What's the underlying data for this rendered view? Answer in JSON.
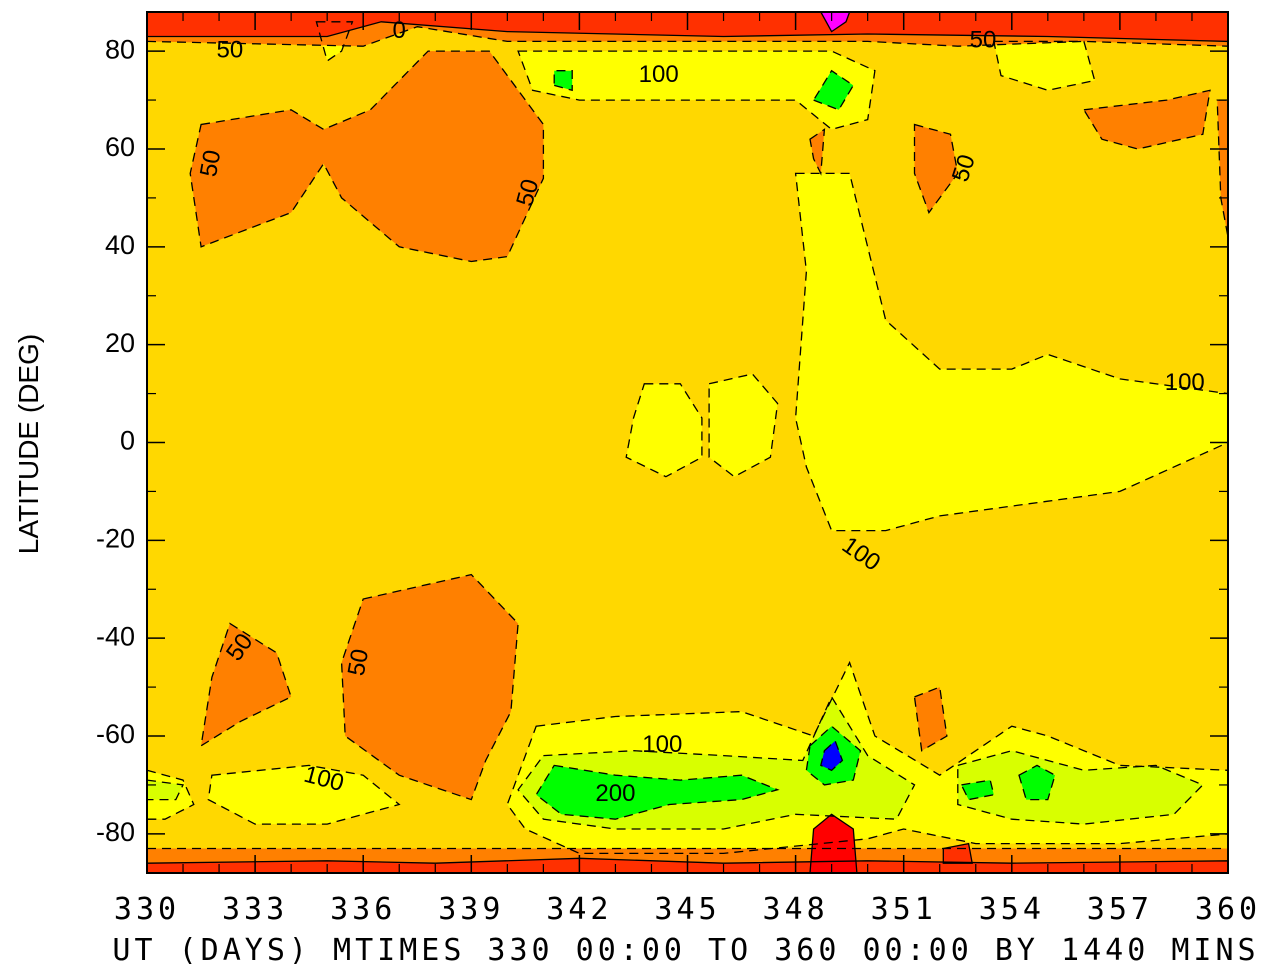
{
  "chart_data": {
    "type": "heatmap",
    "title": "",
    "xlabel": "UT (DAYS) MTIMES 330 00:00 TO 360 00:00 BY 1440 MINS",
    "ylabel": "LATITUDE (DEG)",
    "xlim": [
      330,
      360
    ],
    "ylim": [
      -88,
      88
    ],
    "xticks": [
      330,
      333,
      336,
      339,
      342,
      345,
      348,
      351,
      354,
      357,
      360
    ],
    "yticks": [
      80,
      60,
      40,
      20,
      0,
      -20,
      -40,
      -60,
      -80
    ],
    "contour_interval": 25,
    "contour_labels": [
      "0",
      "50",
      "100",
      "200"
    ],
    "colors": {
      "lt0": "#ff0000",
      "0_25": "#ff3000",
      "25_50": "#ff8000",
      "50_75": "#ffd800",
      "75_100": "#ffff00",
      "100_125": "#d8ff00",
      "125_200": "#80ff00",
      "200_300": "#00ff00",
      "high": "#0000ff",
      "max": "#ff00ff"
    },
    "regions": [
      {
        "level": "25_50",
        "points": [
          [
            331.5,
            65
          ],
          [
            334.0,
            68
          ],
          [
            334.9,
            64
          ],
          [
            336.2,
            68
          ],
          [
            337.8,
            80
          ],
          [
            339.5,
            80
          ],
          [
            341.0,
            65
          ],
          [
            341.0,
            54
          ],
          [
            340.0,
            38
          ],
          [
            339.0,
            37
          ],
          [
            337.0,
            40
          ],
          [
            335.4,
            50
          ],
          [
            334.9,
            57
          ],
          [
            334.0,
            47
          ],
          [
            331.5,
            40
          ],
          [
            331.2,
            55
          ]
        ]
      },
      {
        "level": "25_50",
        "points": [
          [
            351.3,
            65
          ],
          [
            352.3,
            63
          ],
          [
            352.5,
            55
          ],
          [
            351.7,
            47
          ],
          [
            351.3,
            55
          ]
        ]
      },
      {
        "level": "25_50",
        "points": [
          [
            356.0,
            68
          ],
          [
            358.3,
            70
          ],
          [
            359.5,
            72
          ],
          [
            359.3,
            63
          ],
          [
            357.5,
            60
          ],
          [
            356.5,
            62
          ]
        ]
      },
      {
        "level": "25_50",
        "points": [
          [
            348.4,
            62
          ],
          [
            348.8,
            64
          ],
          [
            348.7,
            55
          ],
          [
            348.5,
            58
          ]
        ]
      },
      {
        "level": "25_50",
        "points": [
          [
            359.7,
            70
          ],
          [
            360.0,
            70
          ],
          [
            360.0,
            42
          ],
          [
            359.8,
            50
          ]
        ]
      },
      {
        "level": "25_50",
        "points": [
          [
            332.3,
            -37
          ],
          [
            333.6,
            -43
          ],
          [
            334.0,
            -52
          ],
          [
            332.6,
            -57
          ],
          [
            331.5,
            -62
          ],
          [
            331.8,
            -48
          ]
        ]
      },
      {
        "level": "25_50",
        "points": [
          [
            336.0,
            -32
          ],
          [
            339.0,
            -27
          ],
          [
            340.3,
            -37
          ],
          [
            340.1,
            -55
          ],
          [
            339.4,
            -65
          ],
          [
            339.0,
            -73
          ],
          [
            337.0,
            -68
          ],
          [
            335.5,
            -60
          ],
          [
            335.4,
            -45
          ]
        ]
      },
      {
        "level": "25_50",
        "points": [
          [
            351.3,
            -52
          ],
          [
            352.0,
            -50
          ],
          [
            352.2,
            -60
          ],
          [
            351.5,
            -63
          ]
        ]
      },
      {
        "level": "75_100",
        "points": [
          [
            348.0,
            55
          ],
          [
            349.5,
            55
          ],
          [
            350.5,
            25
          ],
          [
            352.0,
            15
          ],
          [
            354.0,
            15
          ],
          [
            355.0,
            18
          ],
          [
            357.0,
            13
          ],
          [
            360.0,
            10
          ],
          [
            360.0,
            0
          ],
          [
            357.0,
            -10
          ],
          [
            355.0,
            -12
          ],
          [
            352.0,
            -15
          ],
          [
            350.5,
            -18
          ],
          [
            349.0,
            -18
          ],
          [
            348.3,
            -5
          ],
          [
            348.0,
            5
          ],
          [
            348.3,
            35
          ]
        ]
      },
      {
        "level": "75_100",
        "points": [
          [
            343.8,
            12
          ],
          [
            344.8,
            12
          ],
          [
            345.4,
            5
          ],
          [
            345.4,
            -3
          ],
          [
            344.4,
            -7
          ],
          [
            343.3,
            -3
          ],
          [
            343.5,
            5
          ]
        ]
      },
      {
        "level": "75_100",
        "points": [
          [
            345.6,
            12
          ],
          [
            346.8,
            14
          ],
          [
            347.5,
            8
          ],
          [
            347.3,
            -3
          ],
          [
            346.3,
            -7
          ],
          [
            345.6,
            -3
          ]
        ]
      },
      {
        "level": "75_100",
        "points": [
          [
            340.3,
            80
          ],
          [
            346.0,
            80
          ],
          [
            349.0,
            80
          ],
          [
            350.2,
            76
          ],
          [
            350.0,
            66
          ],
          [
            349.0,
            64
          ],
          [
            348.0,
            70
          ],
          [
            346.0,
            70
          ],
          [
            342.0,
            70
          ],
          [
            340.7,
            72
          ]
        ]
      },
      {
        "level": "75_100",
        "points": [
          [
            334.7,
            86
          ],
          [
            335.7,
            86
          ],
          [
            335.4,
            80
          ],
          [
            335.0,
            78
          ]
        ]
      },
      {
        "level": "75_100",
        "points": [
          [
            353.5,
            82
          ],
          [
            356.0,
            82
          ],
          [
            356.3,
            74
          ],
          [
            355.0,
            72
          ],
          [
            353.7,
            75
          ]
        ]
      },
      {
        "level": "75_100",
        "points": [
          [
            340.8,
            -58
          ],
          [
            343.0,
            -56
          ],
          [
            346.5,
            -55
          ],
          [
            348.5,
            -60
          ],
          [
            349.5,
            -45
          ],
          [
            350.2,
            -60
          ],
          [
            352.0,
            -68
          ],
          [
            354.0,
            -58
          ],
          [
            355.0,
            -60
          ],
          [
            357.0,
            -66
          ],
          [
            360.0,
            -67
          ],
          [
            360.0,
            -80
          ],
          [
            357.0,
            -82
          ],
          [
            353.0,
            -82
          ],
          [
            351.0,
            -79
          ],
          [
            350.0,
            -81
          ],
          [
            346.0,
            -84
          ],
          [
            342.0,
            -84
          ],
          [
            340.5,
            -79
          ],
          [
            340.0,
            -74
          ]
        ]
      },
      {
        "level": "75_100",
        "points": [
          [
            331.8,
            -68
          ],
          [
            334.5,
            -66
          ],
          [
            336.0,
            -68
          ],
          [
            337.0,
            -74
          ],
          [
            335.0,
            -78
          ],
          [
            333.0,
            -78
          ],
          [
            331.7,
            -73
          ]
        ]
      },
      {
        "level": "75_100",
        "points": [
          [
            330.0,
            -67
          ],
          [
            331.0,
            -69
          ],
          [
            331.3,
            -74
          ],
          [
            330.5,
            -77
          ],
          [
            330.0,
            -77
          ]
        ]
      },
      {
        "level": "100_125",
        "points": [
          [
            341.0,
            -64
          ],
          [
            343.5,
            -63
          ],
          [
            346.0,
            -64
          ],
          [
            348.2,
            -65
          ],
          [
            349.0,
            -52
          ],
          [
            350.0,
            -64
          ],
          [
            351.3,
            -70
          ],
          [
            350.8,
            -77
          ],
          [
            348.0,
            -76
          ],
          [
            346.0,
            -79
          ],
          [
            343.0,
            -79
          ],
          [
            341.0,
            -77
          ],
          [
            340.3,
            -71
          ]
        ]
      },
      {
        "level": "100_125",
        "points": [
          [
            352.5,
            -66
          ],
          [
            354.0,
            -63
          ],
          [
            355.0,
            -65
          ],
          [
            356.0,
            -67
          ],
          [
            358.0,
            -66
          ],
          [
            359.3,
            -70
          ],
          [
            358.5,
            -76
          ],
          [
            356.0,
            -78
          ],
          [
            354.0,
            -77
          ],
          [
            352.5,
            -74
          ]
        ]
      },
      {
        "level": "100_125",
        "points": [
          [
            330.0,
            -69
          ],
          [
            331.0,
            -70
          ],
          [
            330.8,
            -73
          ],
          [
            330.0,
            -73
          ]
        ]
      },
      {
        "level": "200_300",
        "points": [
          [
            341.3,
            -66
          ],
          [
            343.0,
            -68
          ],
          [
            344.8,
            -69
          ],
          [
            346.5,
            -68
          ],
          [
            347.5,
            -71
          ],
          [
            346.5,
            -73
          ],
          [
            344.5,
            -74
          ],
          [
            343.0,
            -77
          ],
          [
            341.5,
            -76
          ],
          [
            340.8,
            -72
          ]
        ]
      },
      {
        "level": "200_300",
        "points": [
          [
            348.4,
            -62
          ],
          [
            349.0,
            -58
          ],
          [
            349.8,
            -63
          ],
          [
            349.6,
            -69
          ],
          [
            348.8,
            -70
          ],
          [
            348.3,
            -67
          ]
        ]
      },
      {
        "level": "200_300",
        "points": [
          [
            354.2,
            -68
          ],
          [
            354.7,
            -66
          ],
          [
            355.2,
            -68
          ],
          [
            355.0,
            -73
          ],
          [
            354.4,
            -73
          ]
        ]
      },
      {
        "level": "200_300",
        "points": [
          [
            352.6,
            -70
          ],
          [
            353.4,
            -69
          ],
          [
            353.5,
            -72
          ],
          [
            352.8,
            -73
          ]
        ]
      },
      {
        "level": "200_300",
        "points": [
          [
            348.5,
            70
          ],
          [
            349.2,
            68
          ],
          [
            349.6,
            73
          ],
          [
            349.0,
            76
          ]
        ]
      },
      {
        "level": "200_300",
        "points": [
          [
            341.3,
            73
          ],
          [
            341.8,
            72
          ],
          [
            341.8,
            76
          ],
          [
            341.3,
            76
          ]
        ]
      },
      {
        "level": "high",
        "points": [
          [
            348.8,
            -63
          ],
          [
            349.1,
            -61
          ],
          [
            349.3,
            -65
          ],
          [
            349.0,
            -67
          ],
          [
            348.7,
            -66
          ]
        ]
      },
      {
        "level": "25_50",
        "points": [
          [
            330,
            -83
          ],
          [
            360,
            -83
          ],
          [
            360,
            -88
          ],
          [
            330,
            -88
          ]
        ]
      },
      {
        "level": "25_50",
        "points": [
          [
            330,
            82
          ],
          [
            336,
            81
          ],
          [
            337.5,
            85
          ],
          [
            340,
            82
          ],
          [
            346,
            82
          ],
          [
            350,
            82
          ],
          [
            352.5,
            81
          ],
          [
            356,
            82
          ],
          [
            360,
            81
          ],
          [
            360,
            88
          ],
          [
            330,
            88
          ]
        ]
      },
      {
        "level": "0_25",
        "points": [
          [
            330,
            -86
          ],
          [
            335,
            -85.5
          ],
          [
            338,
            -86
          ],
          [
            342,
            -85
          ],
          [
            346,
            -86
          ],
          [
            350,
            -85.5
          ],
          [
            354,
            -86
          ],
          [
            360,
            -85.5
          ],
          [
            360,
            -88
          ],
          [
            330,
            -88
          ]
        ]
      },
      {
        "level": "0_25",
        "points": [
          [
            330,
            83
          ],
          [
            335,
            83
          ],
          [
            336.5,
            86
          ],
          [
            340,
            84
          ],
          [
            346,
            83
          ],
          [
            350,
            83.5
          ],
          [
            355,
            83
          ],
          [
            360,
            82
          ],
          [
            360,
            88
          ],
          [
            330,
            88
          ]
        ]
      },
      {
        "level": "lt0",
        "points": [
          [
            348.5,
            -79
          ],
          [
            349.0,
            -76
          ],
          [
            349.6,
            -79
          ],
          [
            349.7,
            -88
          ],
          [
            348.4,
            -88
          ]
        ]
      },
      {
        "level": "0_25",
        "points": [
          [
            352.1,
            -83
          ],
          [
            352.8,
            -82
          ],
          [
            352.9,
            -86
          ],
          [
            352.1,
            -86
          ]
        ]
      },
      {
        "level": "max",
        "points": [
          [
            348.7,
            88
          ],
          [
            349.0,
            84
          ],
          [
            349.4,
            86
          ],
          [
            349.5,
            88
          ]
        ]
      }
    ],
    "labels": [
      {
        "text": "0",
        "x": 337.0,
        "y": 84,
        "angle": 0
      },
      {
        "text": "50",
        "x": 332.3,
        "y": 80,
        "angle": 0
      },
      {
        "text": "50",
        "x": 331.8,
        "y": 57,
        "angle": -80
      },
      {
        "text": "50",
        "x": 340.6,
        "y": 51,
        "angle": -75
      },
      {
        "text": "50",
        "x": 353.2,
        "y": 82,
        "angle": 0
      },
      {
        "text": "50",
        "x": 352.7,
        "y": 56,
        "angle": -72
      },
      {
        "text": "50",
        "x": 332.6,
        "y": -42,
        "angle": -55
      },
      {
        "text": "50",
        "x": 335.9,
        "y": -45,
        "angle": -80
      },
      {
        "text": "100",
        "x": 344.2,
        "y": 75,
        "angle": 0
      },
      {
        "text": "100",
        "x": 358.8,
        "y": 12,
        "angle": 0
      },
      {
        "text": "100",
        "x": 349.8,
        "y": -23,
        "angle": 35
      },
      {
        "text": "100",
        "x": 344.3,
        "y": -62,
        "angle": 0
      },
      {
        "text": "100",
        "x": 334.9,
        "y": -69,
        "angle": 15
      },
      {
        "text": "200",
        "x": 343.0,
        "y": -72,
        "angle": 0
      }
    ]
  }
}
